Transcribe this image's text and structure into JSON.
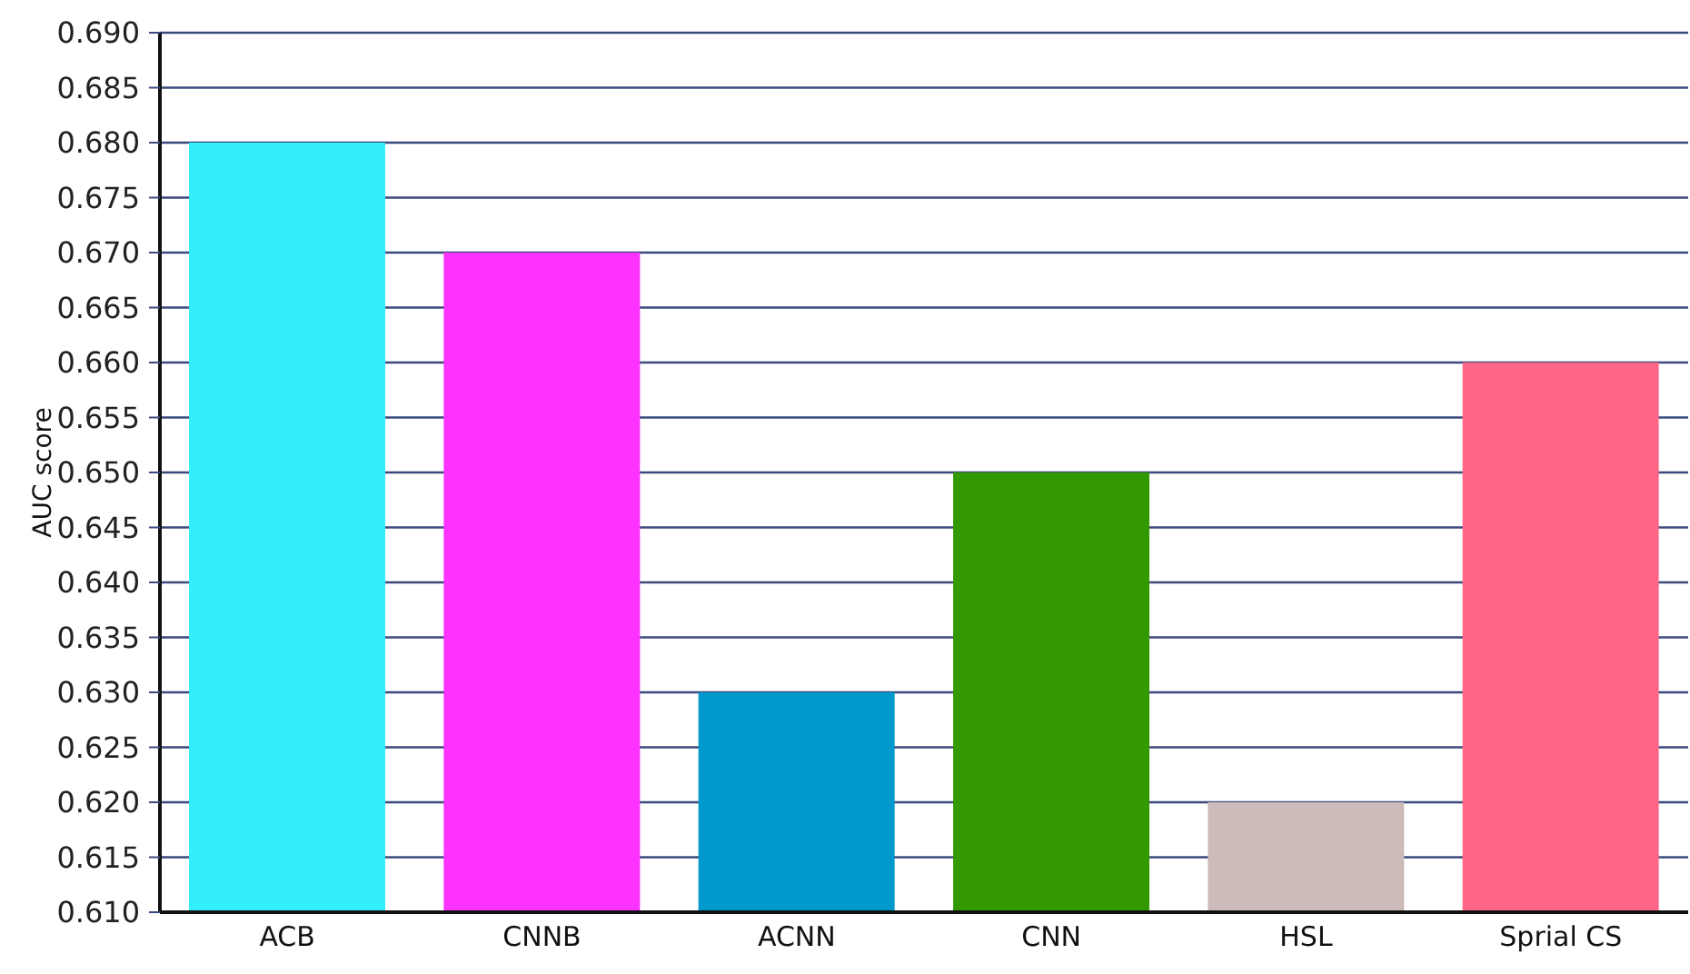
{
  "chart_data": {
    "type": "bar",
    "ylabel": "AUC score",
    "categories": [
      "ACB",
      "CNNB",
      "ACNN",
      "CNN",
      "HSL",
      "Sprial CS"
    ],
    "values": [
      0.68,
      0.67,
      0.63,
      0.65,
      0.62,
      0.66
    ],
    "colors": [
      "#33eefc",
      "#ff33ff",
      "#0099cc",
      "#339900",
      "#ccbbb8",
      "#ff6688"
    ],
    "ylim": [
      0.61,
      0.69
    ],
    "yticks": [
      {
        "value": 0.61,
        "label": "0.610"
      },
      {
        "value": 0.615,
        "label": "0.615"
      },
      {
        "value": 0.62,
        "label": "0.620"
      },
      {
        "value": 0.625,
        "label": "0.625"
      },
      {
        "value": 0.63,
        "label": "0.630"
      },
      {
        "value": 0.635,
        "label": "0.635"
      },
      {
        "value": 0.64,
        "label": "0.640"
      },
      {
        "value": 0.645,
        "label": "0.645"
      },
      {
        "value": 0.65,
        "label": "0.650"
      },
      {
        "value": 0.655,
        "label": "0.655"
      },
      {
        "value": 0.66,
        "label": "0.660"
      },
      {
        "value": 0.665,
        "label": "0.665"
      },
      {
        "value": 0.67,
        "label": "0.670"
      },
      {
        "value": 0.675,
        "label": "0.675"
      },
      {
        "value": 0.68,
        "label": "0.680"
      },
      {
        "value": 0.685,
        "label": "0.685"
      },
      {
        "value": 0.69,
        "label": "0.690"
      }
    ],
    "grid": "y"
  }
}
